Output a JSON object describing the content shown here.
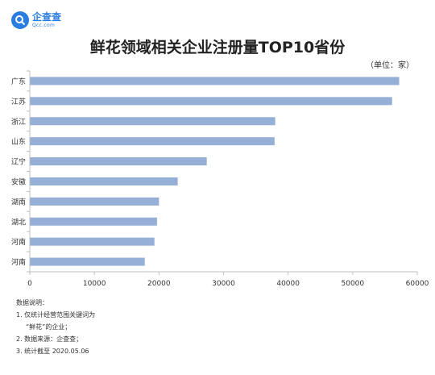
{
  "brand": {
    "name": "企查查",
    "domain": "Qcc.com",
    "color": "#2a7de1"
  },
  "notes": {
    "heading": "数据说明：",
    "lines": [
      "1. 仅统计经营范围关键词为",
      "“鲜花”的企业；",
      "2. 数据来源：企查查；",
      "3. 统计截至 2020.05.06"
    ]
  },
  "chart_data": {
    "type": "bar",
    "orientation": "horizontal",
    "title": "鲜花领域相关企业注册量TOP10省份",
    "unit_label": "（单位：家）",
    "categories": [
      "广东",
      "江苏",
      "浙江",
      "山东",
      "辽宁",
      "安徽",
      "湖南",
      "湖北",
      "河南",
      "河南"
    ],
    "values": [
      57200,
      56100,
      38000,
      37900,
      27400,
      22900,
      20000,
      19700,
      19300,
      17800
    ],
    "xlim": [
      0,
      60000
    ],
    "xticks": [
      "0",
      "10000",
      "20000",
      "30000",
      "40000",
      "50000",
      "60000"
    ],
    "bar_color": "#95afd6",
    "grid": false
  }
}
